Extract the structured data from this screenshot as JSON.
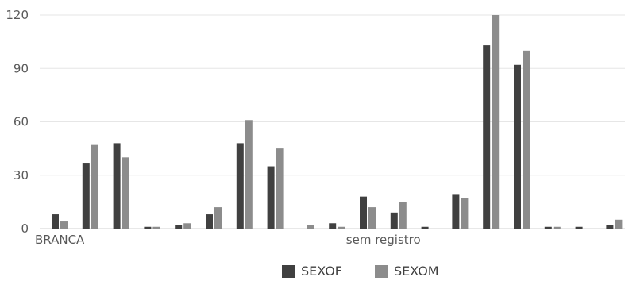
{
  "chart_data": {
    "type": "bar",
    "categories": [
      "BRANCA",
      "",
      "",
      "",
      "",
      "",
      "",
      "",
      "",
      "",
      "",
      "sem registro",
      "",
      "",
      "",
      "",
      "",
      "",
      "",
      ""
    ],
    "series": [
      {
        "name": "SEXOF",
        "color": "#404040",
        "values": [
          8,
          37,
          48,
          1,
          2,
          8,
          48,
          35,
          0,
          3,
          18,
          9,
          1,
          19,
          103,
          92,
          1,
          1,
          2,
          0
        ]
      },
      {
        "name": "SEXOM",
        "color": "#8c8c8c",
        "values": [
          4,
          47,
          40,
          1,
          3,
          12,
          61,
          45,
          2,
          1,
          12,
          15,
          0,
          17,
          120,
          100,
          1,
          0,
          5,
          0
        ]
      }
    ],
    "yticks": [
      "0",
      "30",
      "60",
      "90",
      "120"
    ],
    "ylim": [
      0,
      120
    ],
    "grid": true,
    "legend_position": "bottom"
  }
}
